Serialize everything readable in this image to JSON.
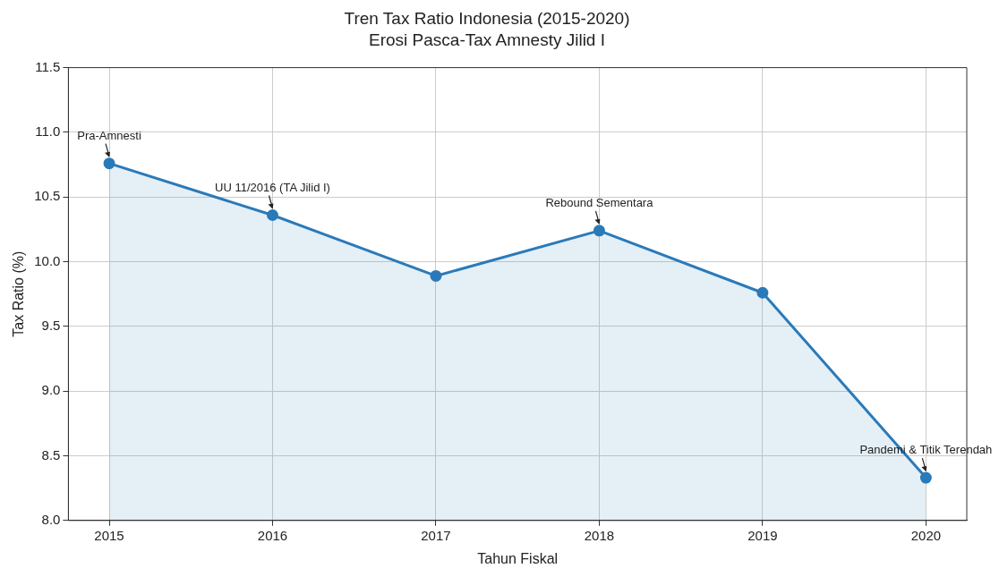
{
  "chart_data": {
    "type": "area",
    "title": "Tren Tax Ratio Indonesia (2015-2020)",
    "subtitle": "Erosi Pasca-Tax Amnesty Jilid I",
    "xlabel": "Tahun Fiskal",
    "ylabel": "Tax Ratio (%)",
    "categories": [
      "2015",
      "2016",
      "2017",
      "2018",
      "2019",
      "2020"
    ],
    "series": [
      {
        "color": "#2a7ab9",
        "values": [
          10.76,
          10.36,
          9.89,
          10.24,
          9.76,
          8.33
        ]
      }
    ],
    "ylim": [
      8.0,
      11.5
    ],
    "yticks": [
      {
        "value": 8,
        "label": "8.0"
      },
      {
        "value": 8.5,
        "label": "8.5"
      },
      {
        "value": 9,
        "label": "9.0"
      },
      {
        "value": 9.5,
        "label": "9.5"
      },
      {
        "value": 10,
        "label": "10.0"
      },
      {
        "value": 10.5,
        "label": "10.5"
      },
      {
        "value": 11,
        "label": "11.0"
      },
      {
        "value": 11.5,
        "label": "11.5"
      }
    ],
    "grid": true,
    "marker": "circle",
    "line_style": "solid",
    "annotations": [
      {
        "text": "Pra-Amnesti",
        "x": "2015",
        "y": 10.76
      },
      {
        "text": "UU 11/2016 (TA Jilid I)",
        "x": "2016",
        "y": 10.36
      },
      {
        "text": "Rebound Sementara",
        "x": "2018",
        "y": 10.24
      },
      {
        "text": "Pandemi & Titik Terendah",
        "x": "2020",
        "y": 8.33
      }
    ]
  }
}
